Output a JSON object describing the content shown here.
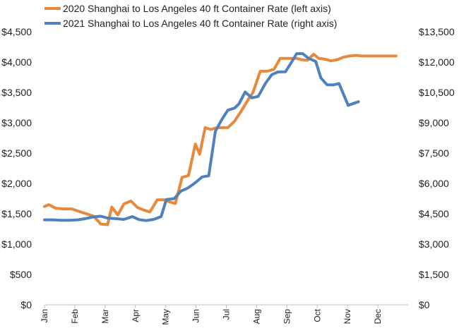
{
  "chart_data": {
    "type": "line",
    "legend_position": "top-left",
    "grid": false,
    "x_categories": [
      "Jan",
      "Feb",
      "Mar",
      "Apr",
      "May",
      "Jun",
      "Jul",
      "Aug",
      "Sep",
      "Oct",
      "Nov",
      "Dec"
    ],
    "left_axis": {
      "ylim": [
        0,
        4500
      ],
      "ticks": [
        0,
        500,
        1000,
        1500,
        2000,
        2500,
        3000,
        3500,
        4000,
        4500
      ],
      "tick_labels": [
        "$0",
        "$500",
        "$1,000",
        "$1,500",
        "$2,000",
        "$2,500",
        "$3,000",
        "$3,500",
        "$4,000",
        "$4,500"
      ]
    },
    "right_axis": {
      "ylim": [
        0,
        13500
      ],
      "ticks": [
        0,
        1500,
        3000,
        4500,
        6000,
        7500,
        9000,
        10500,
        12000,
        13500
      ],
      "tick_labels": [
        "$0",
        "$1,500",
        "$3,000",
        "$4,500",
        "$6,000",
        "$7,500",
        "$9,000",
        "$10,500",
        "$12,000",
        "$13,500"
      ]
    },
    "series": [
      {
        "name": "2020 Shanghai to Los Angeles 40 ft Container Rate (left axis)",
        "axis": "left",
        "color": "#E8883A",
        "x": [
          0,
          0.14,
          0.38,
          0.62,
          0.9,
          1.14,
          1.38,
          1.62,
          1.86,
          2.08,
          2.22,
          2.42,
          2.62,
          2.85,
          3.08,
          3.28,
          3.48,
          3.72,
          3.94,
          4.1,
          4.32,
          4.54,
          4.75,
          4.98,
          5.12,
          5.3,
          5.48,
          5.7,
          5.88,
          6.05,
          6.28,
          6.5,
          6.72,
          6.88,
          7.12,
          7.35,
          7.57,
          7.78,
          7.95,
          8.12,
          8.32,
          8.48,
          8.68,
          8.88,
          9.05,
          9.24,
          9.45,
          9.66,
          9.86,
          10.05,
          10.28,
          10.48,
          10.68,
          10.88,
          11.05,
          11.25,
          11.45,
          11.6
        ],
        "y": [
          1620,
          1650,
          1590,
          1580,
          1580,
          1540,
          1500,
          1460,
          1330,
          1320,
          1610,
          1480,
          1660,
          1710,
          1600,
          1560,
          1530,
          1730,
          1730,
          1700,
          1670,
          2100,
          2130,
          2650,
          2480,
          2920,
          2890,
          2920,
          2920,
          2920,
          3030,
          3200,
          3380,
          3500,
          3850,
          3850,
          3880,
          4060,
          4060,
          4060,
          4060,
          4040,
          4030,
          4130,
          4060,
          4050,
          4020,
          4040,
          4080,
          4100,
          4110,
          4100,
          4100,
          4100,
          4100,
          4100,
          4100,
          4100
        ]
      },
      {
        "name": "2021 Shanghai to Los Angeles 40 ft Container Rate (right axis)",
        "axis": "right",
        "color": "#4F81BD",
        "x": [
          0,
          0.28,
          0.55,
          0.82,
          1.1,
          1.35,
          1.6,
          1.85,
          2.1,
          2.35,
          2.62,
          2.9,
          3.12,
          3.35,
          3.6,
          3.85,
          4.02,
          4.28,
          4.5,
          4.74,
          4.98,
          5.2,
          5.42,
          5.64,
          5.86,
          6.05,
          6.28,
          6.42,
          6.62,
          6.84,
          7.05,
          7.3,
          7.5,
          7.7,
          7.95,
          8.12,
          8.32,
          8.52,
          8.72,
          8.95,
          9.12,
          9.32,
          9.52,
          9.72,
          10.02,
          10.36
        ],
        "y": [
          4200,
          4200,
          4180,
          4180,
          4200,
          4260,
          4340,
          4380,
          4280,
          4260,
          4220,
          4360,
          4210,
          4160,
          4220,
          4360,
          5200,
          5250,
          5620,
          5780,
          6040,
          6320,
          6380,
          8580,
          9180,
          9620,
          9730,
          9940,
          10520,
          10230,
          10300,
          10970,
          11380,
          11510,
          11520,
          11920,
          12420,
          12420,
          12180,
          12030,
          11220,
          10880,
          10870,
          10940,
          9860,
          10040
        ]
      }
    ]
  }
}
